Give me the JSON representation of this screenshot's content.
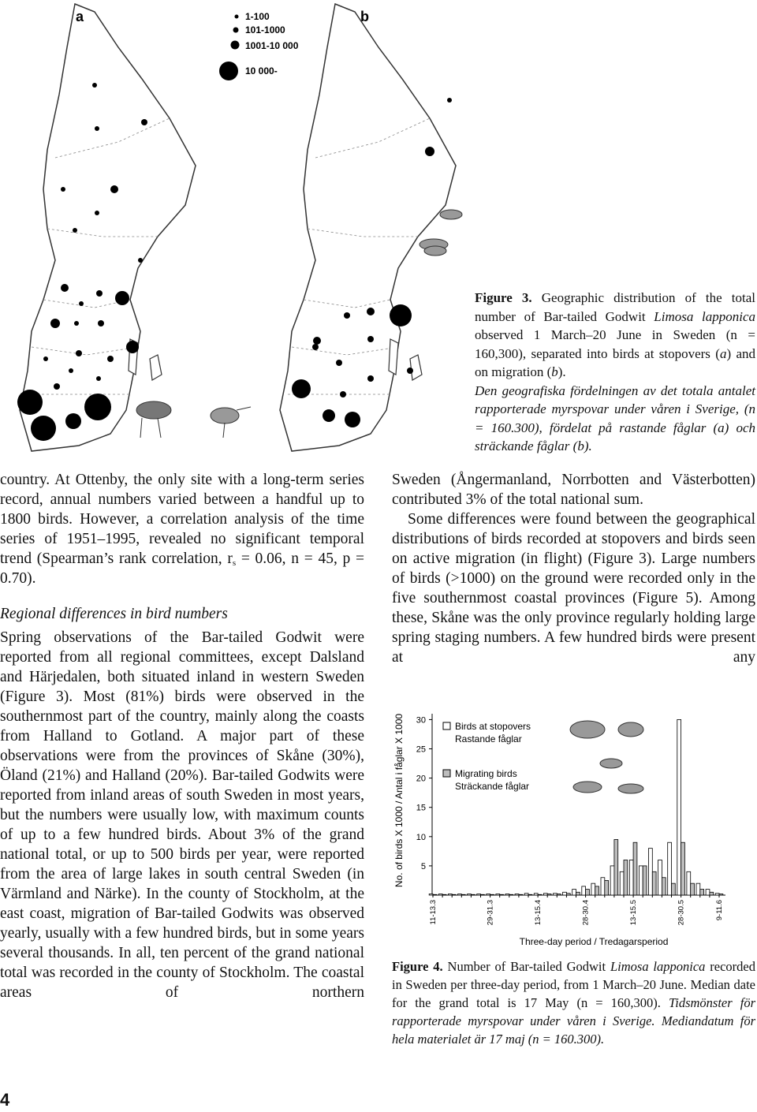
{
  "figure3": {
    "panel_a": "a",
    "panel_b": "b",
    "legend": [
      "1-100",
      "101-1000",
      "1001-10 000",
      "10 000-"
    ],
    "caption": [
      {
        "runs": [
          {
            "text": "Figure 3.",
            "style": "bold"
          },
          {
            "text": " Geographic distribution of the total number of Bar-tailed Godwit "
          },
          {
            "text": "Limosa lapponica",
            "style": "italic"
          },
          {
            "text": " observed 1 March–20 June in Sweden (n = 160,300), separated into birds at stopovers ("
          },
          {
            "text": "a",
            "style": "italic"
          },
          {
            "text": ") and on migration ("
          },
          {
            "text": "b",
            "style": "italic"
          },
          {
            "text": ")."
          }
        ]
      },
      {
        "runs": [
          {
            "text": "Den geografiska fördelningen av det totala antalet rapporterade myrspovar under våren i Sverige, (n = 160.300), fördelat på rastande fåglar (a) och sträckande fåglar (b).",
            "style": "italic"
          }
        ]
      }
    ]
  },
  "body": {
    "left": [
      {
        "runs": [
          {
            "text": "country. At Ottenby, the only site with a long-term series record, annual numbers varied between a handful up to 1800 birds. However, a correlation analysis of the time series of 1951–1995, revealed no significant temporal trend (Spearman’s rank correlation, r"
          },
          {
            "text": "s",
            "style": "sub"
          },
          {
            "text": " = 0.06, n = 45, p = 0.70)."
          }
        ]
      },
      {
        "runs": [
          {
            "text": "Regional differences in bird numbers",
            "style": "italic"
          }
        ]
      },
      {
        "runs": [
          {
            "text": "Spring observations of the Bar-tailed Godwit were reported from all regional committees, except Dalsland and Härjedalen, both situated inland in western Sweden (Figure 3). Most (81%) birds were observed in the southernmost part of the country, mainly along the coasts from Halland to Gotland. A major part of these observations were from the provinces of Skåne (30%), Öland (21%) and Halland (20%). Bar-tailed Godwits were reported from inland areas of south Sweden in most years, but the numbers were usually low, with maximum counts of up to a few hundred birds. About 3% of the grand national total, or up to 500 birds per year, were reported from the area of large lakes in south central Sweden (in Värmland and Närke). In the county of Stockholm, at the east coast, migration of Bar-tailed Godwits was observed yearly, usually with a few hundred birds, but in some years several thousands. In all, ten percent of the grand national total was recorded in the county of Stockholm. The coastal areas of northern"
          }
        ]
      }
    ],
    "right": [
      {
        "runs": [
          {
            "text": "Sweden (Ångermanland, Norrbotten and Västerbotten) contributed 3% of the total national sum."
          }
        ]
      },
      {
        "runs": [
          {
            "text": "Some differences were found between the geographical distributions of birds recorded at stopovers and birds seen on active migration (in flight) (Figure 3). Large numbers of birds (>1000) on the ground were recorded only in the five southernmost coastal provinces (Figure 5). Among these, Skåne was the only province regularly holding large spring staging numbers. A few hundred birds were present at any"
          }
        ]
      }
    ]
  },
  "chart_data": {
    "type": "bar",
    "ylabel": "No. of birds X 1000 / Antal i fåglar X 1000",
    "xlabel": "Three-day period / Tredagarsperiod",
    "categories": [
      "11-13.3",
      null,
      null,
      null,
      null,
      null,
      "29-31.3",
      null,
      null,
      null,
      null,
      "13-15.4",
      null,
      null,
      null,
      null,
      "28-30.4",
      null,
      null,
      null,
      null,
      "13-15.5",
      null,
      null,
      null,
      null,
      "28-30.5",
      null,
      null,
      null,
      "9-11.6"
    ],
    "series": [
      {
        "name": "Birds at stopovers",
        "name_sv": "Rastande fåglar",
        "color": "#ffffff",
        "values": [
          0.2,
          0.2,
          0.2,
          0.2,
          0.2,
          0.2,
          0.2,
          0.2,
          0.2,
          0.2,
          0.3,
          0.3,
          0.3,
          0.3,
          0.5,
          1,
          1.5,
          2,
          3,
          5,
          4,
          6,
          5,
          8,
          6,
          9,
          30,
          4,
          2,
          1,
          0.3
        ]
      },
      {
        "name": "Migrating birds",
        "name_sv": "Sträckande fåglar",
        "color": "#bdbdbd",
        "values": [
          0.1,
          0.1,
          0.1,
          0.1,
          0.1,
          0.1,
          0.1,
          0.1,
          0.1,
          0.1,
          0.1,
          0.1,
          0.2,
          0.2,
          0.3,
          0.5,
          1,
          1.5,
          2.5,
          9.5,
          6,
          9,
          5,
          4,
          3,
          2,
          9,
          2,
          1,
          0.5,
          0.2
        ]
      }
    ],
    "ylim": [
      0,
      31
    ],
    "yticks": [
      5,
      10,
      15,
      20,
      25,
      30
    ]
  },
  "figure4_caption": {
    "runs": [
      {
        "text": "Figure 4.",
        "style": "bold"
      },
      {
        "text": " Number of Bar-tailed Godwit "
      },
      {
        "text": "Limosa lapponica",
        "style": "italic"
      },
      {
        "text": " recorded in Sweden per three-day period, from 1 March–20 June. Median date for the grand total is 17 May (n = 160,300). "
      },
      {
        "text": "Tidsmönster för rapporterade myrspovar under våren i Sverige. Mediandatum för hela materialet är 17 maj (n = 160.300).",
        "style": "italic"
      }
    ]
  },
  "page_number": "4"
}
